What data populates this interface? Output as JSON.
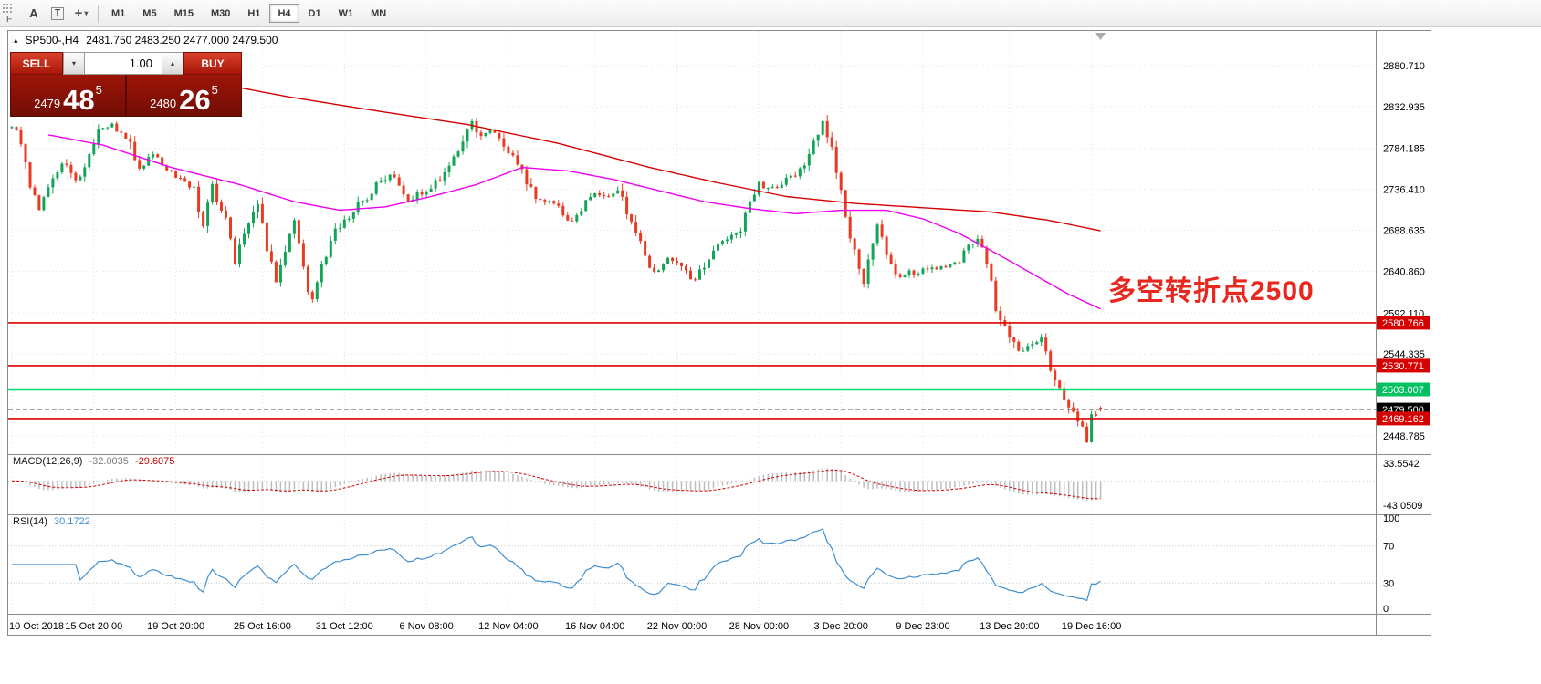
{
  "toolbar": {
    "logo": "F",
    "tool_a": "A",
    "tool_t": "T",
    "timeframes": [
      "M1",
      "M5",
      "M15",
      "M30",
      "H1",
      "H4",
      "D1",
      "W1",
      "MN"
    ],
    "active_timeframe": "H4"
  },
  "chart": {
    "symbol_period": "SP500-,H4",
    "ohlc": "2481.750 2483.250 2477.000 2479.500",
    "annotation": "多空转折点2500"
  },
  "trade": {
    "sell_label": "SELL",
    "buy_label": "BUY",
    "volume": "1.00",
    "sell_price_main": "2479",
    "sell_price_big": "48",
    "sell_price_sup": "5",
    "buy_price_main": "2480",
    "buy_price_big": "26",
    "buy_price_sup": "5"
  },
  "price_axis": {
    "labels": [
      "2880.710",
      "2832.935",
      "2784.185",
      "2736.410",
      "2688.635",
      "2640.860",
      "2592.110",
      "2544.335",
      "2448.785"
    ]
  },
  "time_axis": {
    "labels": [
      {
        "text": "10 Oct 2018",
        "bar": 0
      },
      {
        "text": "15 Oct 20:00",
        "bar": 18
      },
      {
        "text": "19 Oct 20:00",
        "bar": 36
      },
      {
        "text": "25 Oct 16:00",
        "bar": 55
      },
      {
        "text": "31 Oct 12:00",
        "bar": 73
      },
      {
        "text": "6 Nov 08:00",
        "bar": 91
      },
      {
        "text": "12 Nov 04:00",
        "bar": 109
      },
      {
        "text": "16 Nov 04:00",
        "bar": 128
      },
      {
        "text": "22 Nov 00:00",
        "bar": 146
      },
      {
        "text": "28 Nov 00:00",
        "bar": 164
      },
      {
        "text": "3 Dec 20:00",
        "bar": 182
      },
      {
        "text": "9 Dec 23:00",
        "bar": 200
      },
      {
        "text": "13 Dec 20:00",
        "bar": 219
      },
      {
        "text": "19 Dec 16:00",
        "bar": 237
      }
    ]
  },
  "macd": {
    "name": "MACD(12,26,9)",
    "value_main": "-32.0035",
    "value_signal": "-29.6075",
    "axis_max": "33.5542",
    "axis_min": "-43.0509",
    "histogram_color": "#bdbdbd",
    "signal_color": "#d40000"
  },
  "rsi": {
    "name": "RSI(14)",
    "value": "30.1722",
    "line_color": "#3f8ed0",
    "axis_labels": [
      100,
      70,
      30,
      0
    ],
    "levels": [
      70,
      30
    ]
  },
  "colors": {
    "up": "#13a457",
    "down": "#ea3b22",
    "ma_fast_magenta": "#f000f0",
    "ma_slow_red": "#d40000",
    "grid": "#e3e3e3"
  },
  "chart_data": {
    "type": "candlestick",
    "symbol": "SP500-",
    "timeframe": "H4",
    "bar_count": 240,
    "ylim": [
      2428,
      2921
    ],
    "price_gridline_values": [
      2880.71,
      2832.935,
      2784.185,
      2736.41,
      2688.635,
      2640.86,
      2592.11,
      2544.335,
      2448.785
    ],
    "last_bar_ohlc": [
      2481.75,
      2483.25,
      2477.0,
      2479.5
    ],
    "price_waypoints": [
      [
        0,
        2808
      ],
      [
        2,
        2790
      ],
      [
        4,
        2742
      ],
      [
        6,
        2712
      ],
      [
        9,
        2752
      ],
      [
        11,
        2767
      ],
      [
        14,
        2746
      ],
      [
        17,
        2778
      ],
      [
        19,
        2808
      ],
      [
        22,
        2812
      ],
      [
        25,
        2798
      ],
      [
        28,
        2762
      ],
      [
        31,
        2775
      ],
      [
        34,
        2762
      ],
      [
        37,
        2749
      ],
      [
        40,
        2736
      ],
      [
        42,
        2695
      ],
      [
        44,
        2740
      ],
      [
        47,
        2700
      ],
      [
        49,
        2652
      ],
      [
        52,
        2700
      ],
      [
        54,
        2723
      ],
      [
        56,
        2670
      ],
      [
        58,
        2628
      ],
      [
        60,
        2658
      ],
      [
        62,
        2700
      ],
      [
        64,
        2640
      ],
      [
        66,
        2605
      ],
      [
        68,
        2645
      ],
      [
        70,
        2678
      ],
      [
        73,
        2700
      ],
      [
        75,
        2712
      ],
      [
        78,
        2728
      ],
      [
        80,
        2740
      ],
      [
        83,
        2756
      ],
      [
        85,
        2735
      ],
      [
        87,
        2722
      ],
      [
        90,
        2732
      ],
      [
        92,
        2740
      ],
      [
        95,
        2752
      ],
      [
        98,
        2780
      ],
      [
        101,
        2815
      ],
      [
        103,
        2800
      ],
      [
        105,
        2806
      ],
      [
        108,
        2790
      ],
      [
        110,
        2775
      ],
      [
        113,
        2748
      ],
      [
        115,
        2726
      ],
      [
        118,
        2720
      ],
      [
        120,
        2715
      ],
      [
        123,
        2698
      ],
      [
        126,
        2720
      ],
      [
        128,
        2732
      ],
      [
        131,
        2727
      ],
      [
        133,
        2736
      ],
      [
        135,
        2710
      ],
      [
        137,
        2688
      ],
      [
        139,
        2662
      ],
      [
        141,
        2640
      ],
      [
        144,
        2655
      ],
      [
        146,
        2649
      ],
      [
        148,
        2638
      ],
      [
        150,
        2630
      ],
      [
        153,
        2660
      ],
      [
        155,
        2673
      ],
      [
        158,
        2680
      ],
      [
        160,
        2690
      ],
      [
        162,
        2720
      ],
      [
        164,
        2744
      ],
      [
        166,
        2736
      ],
      [
        168,
        2740
      ],
      [
        171,
        2750
      ],
      [
        173,
        2760
      ],
      [
        175,
        2780
      ],
      [
        178,
        2815
      ],
      [
        180,
        2790
      ],
      [
        183,
        2700
      ],
      [
        185,
        2660
      ],
      [
        187,
        2628
      ],
      [
        189,
        2680
      ],
      [
        190,
        2696
      ],
      [
        192,
        2660
      ],
      [
        194,
        2635
      ],
      [
        197,
        2640
      ],
      [
        199,
        2637
      ],
      [
        201,
        2645
      ],
      [
        203,
        2642
      ],
      [
        206,
        2650
      ],
      [
        208,
        2655
      ],
      [
        210,
        2668
      ],
      [
        212,
        2680
      ],
      [
        214,
        2650
      ],
      [
        216,
        2600
      ],
      [
        218,
        2575
      ],
      [
        221,
        2546
      ],
      [
        223,
        2556
      ],
      [
        226,
        2562
      ],
      [
        228,
        2530
      ],
      [
        230,
        2500
      ],
      [
        232,
        2480
      ],
      [
        234,
        2465
      ],
      [
        236,
        2444
      ],
      [
        237,
        2470
      ],
      [
        239,
        2479.5
      ]
    ],
    "ma_red": [
      [
        40,
        2865
      ],
      [
        60,
        2845
      ],
      [
        80,
        2828
      ],
      [
        100,
        2812
      ],
      [
        120,
        2790
      ],
      [
        140,
        2762
      ],
      [
        155,
        2744
      ],
      [
        170,
        2728
      ],
      [
        185,
        2720
      ],
      [
        200,
        2715
      ],
      [
        215,
        2710
      ],
      [
        228,
        2700
      ],
      [
        239,
        2688
      ]
    ],
    "ma_magenta": [
      [
        8,
        2800
      ],
      [
        20,
        2788
      ],
      [
        35,
        2762
      ],
      [
        50,
        2742
      ],
      [
        62,
        2722
      ],
      [
        72,
        2712
      ],
      [
        82,
        2716
      ],
      [
        92,
        2728
      ],
      [
        102,
        2742
      ],
      [
        112,
        2762
      ],
      [
        122,
        2758
      ],
      [
        132,
        2748
      ],
      [
        142,
        2735
      ],
      [
        152,
        2722
      ],
      [
        162,
        2714
      ],
      [
        172,
        2708
      ],
      [
        182,
        2712
      ],
      [
        192,
        2712
      ],
      [
        200,
        2702
      ],
      [
        208,
        2685
      ],
      [
        216,
        2662
      ],
      [
        224,
        2638
      ],
      [
        232,
        2614
      ],
      [
        239,
        2597
      ]
    ],
    "levels": [
      {
        "price": 2580.766,
        "label": "2580.766",
        "line_color": "#e00000",
        "tag_bg": "#d60000",
        "style": "solid",
        "width": 1.6
      },
      {
        "price": 2530.771,
        "label": "2530.771",
        "line_color": "#e00000",
        "tag_bg": "#d60000",
        "style": "solid",
        "width": 1.6
      },
      {
        "price": 2503.007,
        "label": "2503.007",
        "line_color": "#00e076",
        "tag_bg": "#00c060",
        "style": "solid",
        "width": 2.5
      },
      {
        "price": 2479.5,
        "label": "2479.500",
        "line_color": "#707070",
        "tag_bg": "#000000",
        "style": "dashed",
        "width": 1
      },
      {
        "price": 2469.162,
        "label": "2469.162",
        "line_color": "#e00000",
        "tag_bg": "#d60000",
        "style": "solid",
        "width": 1.6
      }
    ],
    "indicators": {
      "macd": {
        "params": [
          12,
          26,
          9
        ],
        "last": -32.0035,
        "signal_last": -29.6075,
        "range": [
          -43.0509,
          33.5542
        ]
      },
      "rsi": {
        "period": 14,
        "last": 30.1722,
        "range": [
          0,
          100
        ],
        "levels": [
          70,
          30
        ]
      }
    }
  }
}
